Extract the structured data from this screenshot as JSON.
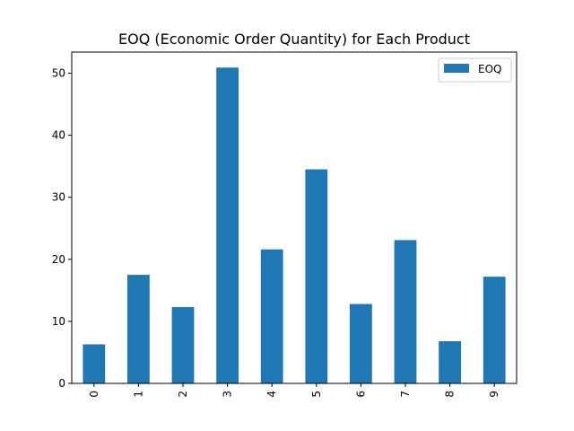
{
  "chart_data": {
    "type": "bar",
    "title": "EOQ (Economic Order Quantity) for Each Product",
    "xlabel": "",
    "ylabel": "",
    "categories": [
      "0",
      "1",
      "2",
      "3",
      "4",
      "5",
      "6",
      "7",
      "8",
      "9"
    ],
    "series": [
      {
        "name": "EOQ",
        "color": "#1f77b4",
        "values": [
          6.3,
          17.5,
          12.3,
          50.9,
          21.6,
          34.5,
          12.8,
          23.1,
          6.8,
          17.2
        ]
      }
    ],
    "ylim": [
      0,
      53.4
    ],
    "yticks": [
      0,
      10,
      20,
      30,
      40,
      50
    ],
    "ytick_labels": [
      "0",
      "10",
      "20",
      "30",
      "40",
      "50"
    ],
    "grid": false,
    "legend": {
      "position": "upper-right",
      "entries": [
        "EOQ"
      ]
    }
  }
}
